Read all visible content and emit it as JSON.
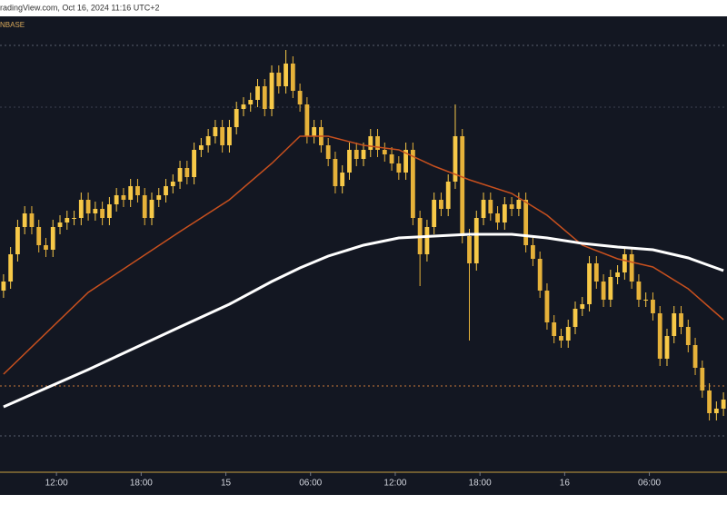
{
  "header": {
    "source": "radingView.com, Oct 16, 2024 11:16 UTC+2",
    "symbol": "NBASE"
  },
  "chart_data": {
    "type": "candlestick",
    "open": [
      200,
      210,
      240,
      270,
      285,
      270,
      250,
      245,
      270,
      275,
      280,
      280,
      300,
      285,
      290,
      280,
      295,
      305,
      300,
      315,
      305,
      280,
      300,
      305,
      315,
      320,
      335,
      325,
      355,
      360,
      370,
      380,
      360,
      380,
      400,
      405,
      410,
      425,
      400,
      440,
      425,
      450,
      420,
      405,
      370,
      380,
      360,
      345,
      315,
      330,
      355,
      345,
      355,
      370,
      355,
      350,
      340,
      330,
      355,
      280,
      240,
      270,
      300,
      290,
      320,
      370,
      260,
      230,
      280,
      300,
      285,
      275,
      295,
      290,
      300,
      250,
      235,
      200,
      165,
      150,
      145,
      160,
      180,
      185,
      230,
      210,
      190,
      215,
      220,
      240,
      210,
      190,
      190,
      175,
      125,
      150,
      175,
      160,
      140,
      115,
      90,
      65,
      70
    ],
    "high": [
      218,
      248,
      278,
      293,
      293,
      278,
      258,
      278,
      283,
      288,
      288,
      308,
      308,
      298,
      298,
      303,
      313,
      313,
      323,
      323,
      313,
      308,
      313,
      323,
      328,
      343,
      343,
      363,
      368,
      378,
      388,
      388,
      388,
      408,
      413,
      418,
      433,
      433,
      448,
      448,
      465,
      458,
      428,
      413,
      388,
      388,
      368,
      353,
      338,
      363,
      363,
      363,
      378,
      378,
      363,
      358,
      348,
      363,
      363,
      288,
      278,
      308,
      308,
      328,
      405,
      378,
      268,
      288,
      308,
      308,
      293,
      303,
      303,
      308,
      308,
      258,
      243,
      208,
      173,
      158,
      168,
      188,
      193,
      238,
      238,
      218,
      223,
      228,
      248,
      248,
      218,
      198,
      198,
      183,
      158,
      183,
      183,
      168,
      148,
      123,
      98,
      78,
      88
    ],
    "low": [
      192,
      202,
      232,
      262,
      262,
      242,
      237,
      237,
      262,
      267,
      272,
      272,
      277,
      277,
      272,
      272,
      287,
      292,
      292,
      297,
      272,
      272,
      292,
      297,
      307,
      312,
      317,
      317,
      347,
      352,
      362,
      352,
      352,
      372,
      392,
      397,
      402,
      392,
      392,
      417,
      417,
      412,
      397,
      362,
      362,
      352,
      337,
      307,
      307,
      322,
      337,
      337,
      347,
      347,
      342,
      332,
      322,
      322,
      272,
      205,
      232,
      262,
      282,
      282,
      312,
      252,
      145,
      222,
      272,
      277,
      267,
      267,
      282,
      282,
      242,
      227,
      192,
      157,
      142,
      137,
      137,
      152,
      172,
      177,
      202,
      182,
      182,
      207,
      212,
      202,
      182,
      182,
      167,
      117,
      117,
      142,
      152,
      132,
      107,
      82,
      57,
      57,
      62
    ],
    "close": [
      210,
      240,
      270,
      285,
      270,
      250,
      245,
      270,
      275,
      280,
      280,
      300,
      285,
      290,
      280,
      295,
      305,
      300,
      315,
      305,
      280,
      300,
      305,
      315,
      320,
      335,
      325,
      355,
      360,
      370,
      380,
      360,
      380,
      400,
      405,
      410,
      425,
      400,
      440,
      425,
      450,
      420,
      405,
      370,
      380,
      360,
      345,
      315,
      330,
      355,
      345,
      355,
      370,
      355,
      350,
      340,
      330,
      355,
      280,
      240,
      270,
      300,
      290,
      320,
      370,
      260,
      230,
      280,
      300,
      285,
      275,
      295,
      290,
      300,
      250,
      235,
      200,
      165,
      150,
      145,
      160,
      180,
      185,
      230,
      210,
      190,
      215,
      220,
      240,
      210,
      190,
      190,
      175,
      125,
      150,
      175,
      160,
      140,
      115,
      90,
      65,
      70,
      80
    ],
    "up_color": "#f7c948",
    "down_color": "#e6b23a",
    "lines": [
      {
        "color": "#c8501e",
        "x": [
          0,
          12,
          25,
          32,
          38,
          42,
          46,
          51,
          56,
          61,
          66,
          72,
          77,
          82,
          87,
          92,
          97,
          102
        ],
        "values": [
          108,
          198,
          265,
          300,
          340,
          370,
          370,
          360,
          355,
          337,
          322,
          307,
          283,
          250,
          235,
          226,
          202,
          168
        ]
      },
      {
        "color": "#ffffff",
        "x": [
          0,
          12,
          25,
          32,
          38,
          42,
          46,
          51,
          56,
          61,
          66,
          72,
          77,
          82,
          87,
          92,
          97,
          102
        ],
        "values": [
          72,
          113,
          160,
          185,
          210,
          225,
          238,
          250,
          258,
          260,
          262,
          262,
          258,
          252,
          248,
          245,
          236,
          222
        ]
      }
    ],
    "hlines": [
      {
        "value": 470,
        "color": "#5a5f6e"
      },
      {
        "value": 402,
        "color": "#3c4150"
      },
      {
        "value": 95,
        "color": "#c87a3a"
      },
      {
        "value": 40,
        "color": "#5a5f6e"
      }
    ],
    "xlim": [
      -0.5,
      102.5
    ],
    "ylim": [
      0,
      500
    ],
    "xticks": [
      {
        "value": 7.5,
        "label": "12:00"
      },
      {
        "value": 19.5,
        "label": "18:00"
      },
      {
        "value": 31.5,
        "label": "15"
      },
      {
        "value": 43.5,
        "label": "06:00"
      },
      {
        "value": 55.5,
        "label": "12:00"
      },
      {
        "value": 67.5,
        "label": "18:00"
      },
      {
        "value": 79.5,
        "label": "16"
      },
      {
        "value": 91.5,
        "label": "06:00"
      }
    ]
  }
}
